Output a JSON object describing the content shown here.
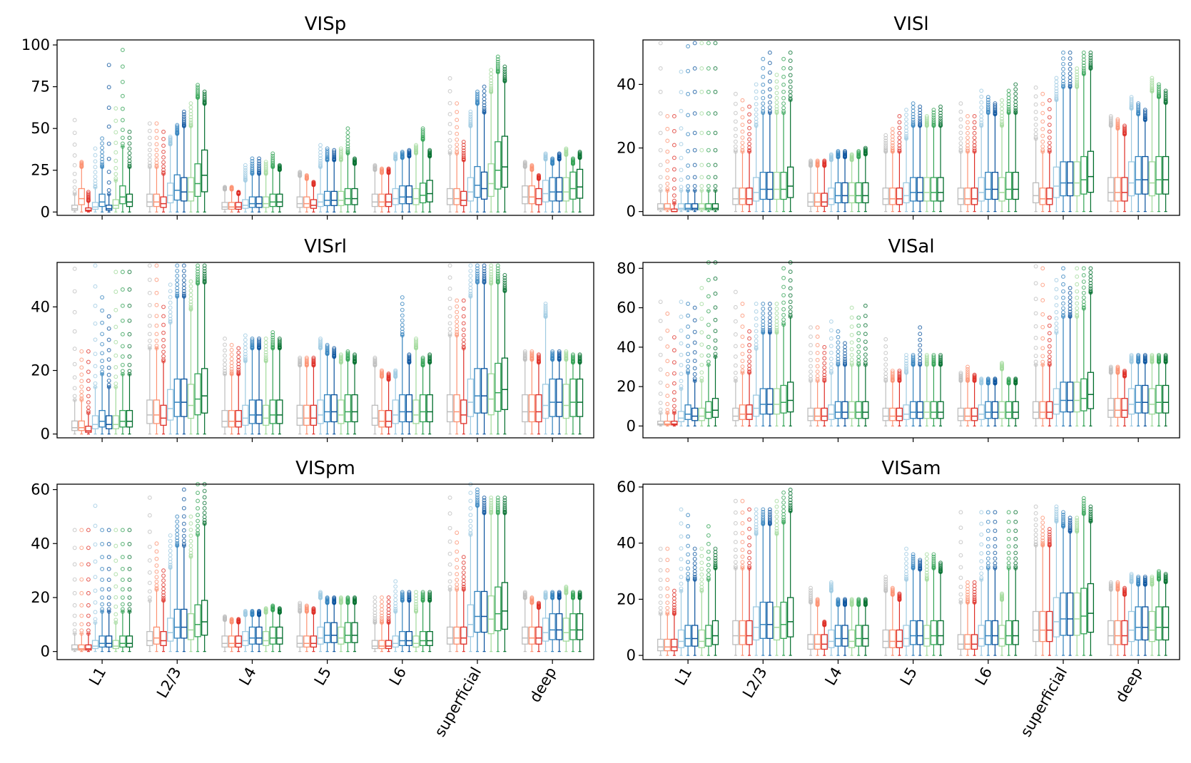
{
  "colors": {
    "series": [
      "#bdbdbd",
      "#fc9272",
      "#de2d26",
      "#9ecae1",
      "#3182bd",
      "#08519c",
      "#a1d99b",
      "#31a354",
      "#006d2c"
    ]
  },
  "chart_data": [
    {
      "type": "box",
      "title": "VISp",
      "categories": [
        "L1",
        "L2/3",
        "L4",
        "L5",
        "L6",
        "superficial",
        "deep"
      ],
      "ylim": [
        -2,
        103
      ],
      "yticks": [
        0,
        25,
        50,
        75,
        100
      ],
      "show_xlabels": false,
      "medians": [
        [
          2,
          8,
          1,
          3,
          6,
          2,
          4,
          9,
          6
        ],
        [
          6,
          6,
          5,
          10,
          13,
          12,
          12,
          17,
          22
        ],
        [
          3,
          3,
          3,
          4,
          5,
          5,
          5,
          6,
          6
        ],
        [
          5,
          5,
          4,
          6,
          7,
          7,
          7,
          8,
          8
        ],
        [
          6,
          6,
          6,
          8,
          9,
          9,
          8,
          10,
          11
        ],
        [
          8,
          8,
          7,
          12,
          16,
          14,
          17,
          25,
          27
        ],
        [
          9,
          9,
          8,
          11,
          12,
          12,
          12,
          14,
          15
        ]
      ],
      "upper_outlier": [
        [
          55,
          30,
          12,
          38,
          44,
          88,
          62,
          97,
          48
        ],
        [
          53,
          53,
          48,
          45,
          52,
          60,
          65,
          76,
          72
        ],
        [
          15,
          15,
          12,
          28,
          32,
          32,
          30,
          35,
          28
        ],
        [
          24,
          22,
          18,
          40,
          38,
          37,
          38,
          50,
          32
        ],
        [
          28,
          26,
          26,
          35,
          36,
          37,
          40,
          50,
          37
        ],
        [
          80,
          65,
          42,
          60,
          72,
          75,
          85,
          93,
          87
        ],
        [
          30,
          28,
          22,
          35,
          32,
          35,
          38,
          32,
          36
        ]
      ]
    },
    {
      "type": "box",
      "title": "VISl",
      "categories": [
        "L1",
        "L2/3",
        "L4",
        "L5",
        "L6",
        "superficial",
        "deep"
      ],
      "ylim": [
        -1.2,
        54
      ],
      "yticks": [
        0,
        20,
        40
      ],
      "show_xlabels": false,
      "medians": [
        [
          1,
          1,
          0,
          1,
          1,
          1,
          1,
          1,
          1
        ],
        [
          4,
          4,
          4,
          6,
          7,
          7,
          7,
          7,
          8
        ],
        [
          3,
          3,
          3,
          4,
          5,
          5,
          5,
          5,
          5
        ],
        [
          4,
          4,
          4,
          5,
          6,
          6,
          6,
          6,
          6
        ],
        [
          4,
          4,
          4,
          6,
          7,
          7,
          6,
          7,
          7
        ],
        [
          5,
          4,
          4,
          8,
          9,
          9,
          9,
          10,
          11
        ],
        [
          6,
          6,
          6,
          9,
          10,
          10,
          9,
          10,
          10
        ]
      ],
      "upper_outlier": [
        [
          53,
          30,
          30,
          44,
          52,
          53,
          53,
          53,
          53
        ],
        [
          37,
          35,
          33,
          40,
          48,
          50,
          43,
          48,
          50
        ],
        [
          16,
          16,
          16,
          18,
          19,
          19,
          18,
          19,
          20
        ],
        [
          24,
          26,
          30,
          32,
          34,
          33,
          30,
          32,
          33
        ],
        [
          34,
          30,
          30,
          38,
          36,
          34,
          35,
          38,
          40
        ],
        [
          39,
          37,
          35,
          42,
          50,
          50,
          45,
          50,
          50
        ],
        [
          30,
          29,
          27,
          36,
          34,
          32,
          42,
          40,
          38
        ]
      ]
    },
    {
      "type": "box",
      "title": "VISrl",
      "categories": [
        "L1",
        "L2/3",
        "L4",
        "L5",
        "L6",
        "superficial",
        "deep"
      ],
      "ylim": [
        -1.2,
        54
      ],
      "yticks": [
        0,
        20,
        40
      ],
      "show_xlabels": false,
      "medians": [
        [
          2,
          2,
          1,
          3,
          4,
          3,
          3,
          4,
          4
        ],
        [
          6,
          6,
          5,
          8,
          10,
          10,
          9,
          11,
          12
        ],
        [
          4,
          4,
          4,
          5,
          6,
          6,
          5,
          6,
          6
        ],
        [
          5,
          5,
          5,
          6,
          7,
          7,
          6,
          7,
          7
        ],
        [
          5,
          4,
          4,
          6,
          7,
          7,
          6,
          7,
          7
        ],
        [
          7,
          7,
          6,
          10,
          12,
          12,
          11,
          13,
          14
        ],
        [
          7,
          7,
          7,
          9,
          10,
          10,
          9,
          10,
          10
        ]
      ],
      "upper_outlier": [
        [
          52,
          26,
          26,
          53,
          43,
          37,
          51,
          51,
          51
        ],
        [
          53,
          53,
          40,
          47,
          53,
          53,
          48,
          53,
          53
        ],
        [
          30,
          28,
          27,
          31,
          30,
          30,
          30,
          32,
          30
        ],
        [
          24,
          24,
          24,
          30,
          28,
          27,
          25,
          26,
          25
        ],
        [
          24,
          20,
          19,
          20,
          43,
          25,
          30,
          24,
          25
        ],
        [
          53,
          42,
          42,
          53,
          53,
          53,
          53,
          53,
          50
        ],
        [
          26,
          26,
          25,
          41,
          26,
          26,
          26,
          25,
          25
        ]
      ]
    },
    {
      "type": "box",
      "title": "VISal",
      "categories": [
        "L1",
        "L2/3",
        "L4",
        "L5",
        "L6",
        "superficial",
        "deep"
      ],
      "ylim": [
        -6,
        83
      ],
      "yticks": [
        0,
        20,
        40,
        60,
        80
      ],
      "show_xlabels": false,
      "medians": [
        [
          1,
          1,
          1,
          4,
          6,
          5,
          5,
          7,
          8
        ],
        [
          5,
          6,
          6,
          9,
          11,
          11,
          11,
          12,
          13
        ],
        [
          5,
          5,
          5,
          6,
          7,
          7,
          7,
          7,
          7
        ],
        [
          5,
          5,
          5,
          6,
          7,
          7,
          7,
          7,
          7
        ],
        [
          5,
          5,
          5,
          6,
          7,
          7,
          7,
          7,
          7
        ],
        [
          7,
          7,
          7,
          11,
          13,
          13,
          13,
          14,
          16
        ],
        [
          8,
          8,
          8,
          11,
          12,
          12,
          11,
          12,
          12
        ]
      ],
      "upper_outlier": [
        [
          63,
          57,
          45,
          63,
          62,
          60,
          70,
          83,
          83
        ],
        [
          68,
          62,
          48,
          62,
          62,
          62,
          62,
          80,
          83
        ],
        [
          50,
          50,
          40,
          53,
          48,
          42,
          60,
          55,
          61
        ],
        [
          44,
          28,
          28,
          36,
          36,
          50,
          36,
          36,
          36
        ],
        [
          27,
          30,
          26,
          24,
          24,
          24,
          32,
          24,
          24
        ],
        [
          81,
          80,
          55,
          74,
          80,
          70,
          80,
          80,
          80
        ],
        [
          30,
          30,
          28,
          36,
          36,
          36,
          36,
          36,
          36
        ]
      ]
    },
    {
      "type": "box",
      "title": "VISpm",
      "categories": [
        "L1",
        "L2/3",
        "L4",
        "L5",
        "L6",
        "superficial",
        "deep"
      ],
      "ylim": [
        -3,
        62
      ],
      "yticks": [
        0,
        20,
        40,
        60
      ],
      "show_xlabels": true,
      "medians": [
        [
          1,
          1,
          1,
          2,
          3,
          3,
          2,
          3,
          3
        ],
        [
          4,
          5,
          4,
          7,
          9,
          9,
          8,
          10,
          11
        ],
        [
          3,
          3,
          3,
          4,
          5,
          5,
          4,
          5,
          5
        ],
        [
          3,
          3,
          3,
          5,
          6,
          6,
          5,
          6,
          6
        ],
        [
          2,
          2,
          2,
          3,
          4,
          4,
          3,
          4,
          4
        ],
        [
          5,
          5,
          5,
          10,
          13,
          13,
          12,
          14,
          15
        ],
        [
          5,
          5,
          5,
          7,
          8,
          8,
          7,
          8,
          8
        ]
      ],
      "upper_outlier": [
        [
          45,
          45,
          45,
          54,
          45,
          45,
          45,
          45,
          45
        ],
        [
          57,
          40,
          30,
          43,
          50,
          60,
          50,
          62,
          62
        ],
        [
          13,
          12,
          12,
          15,
          15,
          15,
          16,
          17,
          16
        ],
        [
          18,
          17,
          16,
          22,
          20,
          20,
          20,
          20,
          20
        ],
        [
          20,
          20,
          20,
          26,
          22,
          22,
          22,
          22,
          22
        ],
        [
          57,
          44,
          35,
          62,
          60,
          57,
          57,
          57,
          57
        ],
        [
          22,
          20,
          18,
          22,
          22,
          22,
          24,
          22,
          22
        ]
      ]
    },
    {
      "type": "box",
      "title": "VISam",
      "categories": [
        "L1",
        "L2/3",
        "L4",
        "L5",
        "L6",
        "superficial",
        "deep"
      ],
      "ylim": [
        -1.5,
        61
      ],
      "yticks": [
        0,
        20,
        40,
        60
      ],
      "show_xlabels": true,
      "medians": [
        [
          3,
          3,
          3,
          5,
          6,
          6,
          5,
          6,
          7
        ],
        [
          7,
          7,
          7,
          10,
          11,
          11,
          10,
          11,
          12
        ],
        [
          4,
          4,
          4,
          5,
          6,
          6,
          5,
          6,
          6
        ],
        [
          5,
          5,
          5,
          6,
          7,
          7,
          6,
          7,
          7
        ],
        [
          4,
          4,
          4,
          6,
          7,
          7,
          6,
          7,
          7
        ],
        [
          9,
          9,
          9,
          12,
          13,
          13,
          13,
          14,
          15
        ],
        [
          7,
          7,
          7,
          9,
          10,
          10,
          9,
          10,
          10
        ]
      ],
      "upper_outlier": [
        [
          38,
          38,
          23,
          52,
          50,
          38,
          38,
          46,
          38
        ],
        [
          55,
          55,
          52,
          52,
          52,
          52,
          55,
          58,
          59
        ],
        [
          24,
          20,
          12,
          26,
          20,
          20,
          20,
          20,
          20
        ],
        [
          28,
          24,
          22,
          38,
          36,
          34,
          36,
          36,
          33
        ],
        [
          51,
          26,
          26,
          51,
          51,
          51,
          22,
          51,
          51
        ],
        [
          53,
          49,
          45,
          53,
          51,
          49,
          49,
          56,
          53
        ],
        [
          26,
          26,
          24,
          29,
          28,
          28,
          28,
          30,
          29
        ]
      ]
    }
  ]
}
